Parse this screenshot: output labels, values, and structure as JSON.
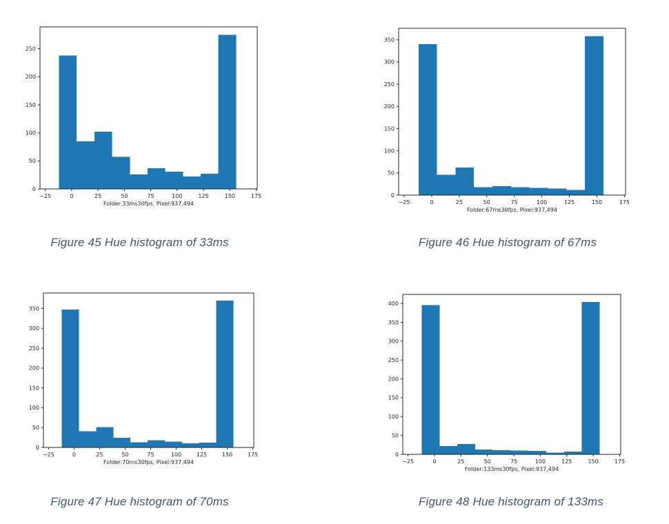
{
  "styles": {
    "caption_color": "#44546a",
    "axis_color": "#262626",
    "background": "#ffffff",
    "bar_color": "#1f77b4"
  },
  "chart_data": [
    {
      "type": "bar",
      "variant": "histogram",
      "caption": "Figure 45 Hue histogram of 33ms",
      "xlabel": "Folder:33ms30fps, Pixel:937,494",
      "bin_edges": [
        -12,
        4.8,
        21.6,
        38.4,
        55.2,
        72,
        88.8,
        105.6,
        122.4,
        139.2,
        156
      ],
      "values": [
        238,
        85,
        102,
        57,
        26,
        37,
        31,
        22,
        27,
        275
      ],
      "xticks": [
        -25,
        0,
        25,
        50,
        75,
        100,
        125,
        150,
        175
      ],
      "xtick_labels": [
        "−25",
        "0",
        "25",
        "50",
        "75",
        "100",
        "125",
        "150",
        "175"
      ],
      "yticks": [
        0,
        50,
        100,
        150,
        200,
        250
      ],
      "xlim": [
        -30,
        176
      ],
      "ylim": [
        0,
        289
      ],
      "bar_color": "#1f77b4",
      "grid": false,
      "legend": null
    },
    {
      "type": "bar",
      "variant": "histogram",
      "caption": "Figure 46 Hue histogram of 67ms",
      "xlabel": "Folder:67ms30fps, Pixel:937,494",
      "bin_edges": [
        -12,
        4.8,
        21.6,
        38.4,
        55.2,
        72,
        88.8,
        105.6,
        122.4,
        139.2,
        156
      ],
      "values": [
        340,
        46,
        62,
        18,
        20,
        18,
        16,
        15,
        12,
        358
      ],
      "xticks": [
        -25,
        0,
        25,
        50,
        75,
        100,
        125,
        150,
        175
      ],
      "xtick_labels": [
        "−25",
        "0",
        "25",
        "50",
        "75",
        "100",
        "125",
        "150",
        "175"
      ],
      "yticks": [
        0,
        50,
        100,
        150,
        200,
        250,
        300,
        350
      ],
      "xlim": [
        -30,
        176
      ],
      "ylim": [
        0,
        376
      ],
      "bar_color": "#1f77b4",
      "grid": false,
      "legend": null
    },
    {
      "type": "bar",
      "variant": "histogram",
      "caption": "Figure 47 Hue histogram of 70ms",
      "xlabel": "Folder:70ms30fps, Pixel:937,494",
      "bin_edges": [
        -12,
        4.8,
        21.6,
        38.4,
        55.2,
        72,
        88.8,
        105.6,
        122.4,
        139.2,
        156
      ],
      "values": [
        347,
        41,
        51,
        24,
        13,
        18,
        15,
        10,
        12,
        370
      ],
      "xticks": [
        -25,
        0,
        25,
        50,
        75,
        100,
        125,
        150,
        175
      ],
      "xtick_labels": [
        "−25",
        "0",
        "25",
        "50",
        "75",
        "100",
        "125",
        "150",
        "175"
      ],
      "yticks": [
        0,
        50,
        100,
        150,
        200,
        250,
        300,
        350
      ],
      "xlim": [
        -30,
        176
      ],
      "ylim": [
        0,
        389
      ],
      "bar_color": "#1f77b4",
      "grid": false,
      "legend": null
    },
    {
      "type": "bar",
      "variant": "histogram",
      "caption": "Figure 48 Hue histogram of 133ms",
      "xlabel": "Folder:133ms30fps, Pixel:937,494",
      "bin_edges": [
        -12,
        4.8,
        21.6,
        38.4,
        55.2,
        72,
        88.8,
        105.6,
        122.4,
        139.2,
        156
      ],
      "values": [
        396,
        22,
        27,
        13,
        11,
        10,
        9,
        5,
        7,
        404
      ],
      "xticks": [
        -25,
        0,
        25,
        50,
        75,
        100,
        125,
        150,
        175
      ],
      "xtick_labels": [
        "−25",
        "0",
        "25",
        "50",
        "75",
        "100",
        "125",
        "150",
        "175"
      ],
      "yticks": [
        0,
        50,
        100,
        150,
        200,
        250,
        300,
        350,
        400
      ],
      "xlim": [
        -30,
        176
      ],
      "ylim": [
        0,
        424
      ],
      "bar_color": "#1f77b4",
      "grid": false,
      "legend": null
    }
  ]
}
